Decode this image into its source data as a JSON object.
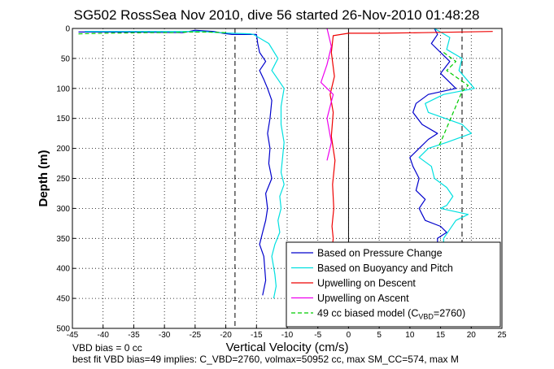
{
  "chart_data": {
    "type": "line",
    "title": "SG502 RossSea Nov 2010, dive 56 started 26-Nov-2010 01:48:28",
    "xlabel": "Vertical Velocity (cm/s)",
    "ylabel": "Depth (m)",
    "xlim": [
      -45,
      25
    ],
    "ylim": [
      500,
      0
    ],
    "x_ticks": [
      -45,
      -40,
      -35,
      -30,
      -25,
      -20,
      -15,
      -10,
      -5,
      0,
      5,
      10,
      15,
      20,
      25
    ],
    "y_ticks": [
      0,
      50,
      100,
      150,
      200,
      250,
      300,
      350,
      400,
      450,
      500
    ],
    "y_reversed": true,
    "grid": true,
    "legend_position": "bottom-right",
    "reference_lines": [
      {
        "x": -18.5,
        "style": "dashed",
        "color": "#000000"
      },
      {
        "x": 0,
        "style": "solid",
        "color": "#000000"
      },
      {
        "x": 18.5,
        "style": "dashed",
        "color": "#000000"
      }
    ],
    "series": [
      {
        "name": "Based on Pressure Change",
        "color": "#0000cc",
        "style": "solid",
        "groups": [
          {
            "x": [
              -44,
              -35,
              -27,
              -25,
              -22,
              -20.5,
              -19,
              -17,
              -16,
              -15,
              -14.8,
              -14.5,
              -13.5,
              -14.5,
              -13.8,
              -13.2,
              -12.5,
              -12.8,
              -13.2,
              -12.8,
              -13,
              -12.5,
              -13.5,
              -13.2,
              -13.5,
              -14,
              -14.5,
              -13.8,
              -13.5,
              -14
            ],
            "y": [
              6,
              6,
              7,
              3,
              5,
              8,
              10,
              10,
              10,
              10,
              25,
              40,
              55,
              70,
              85,
              100,
              120,
              150,
              175,
              200,
              225,
              250,
              275,
              300,
              320,
              340,
              360,
              380,
              420,
              445
            ]
          },
          {
            "x": [
              14,
              14.5,
              13.5,
              15.5,
              16.5,
              15,
              17.5,
              13,
              11,
              10.5,
              12,
              14.5,
              13,
              11.5,
              10,
              10.5,
              11.5,
              11,
              12.5,
              11.5,
              12,
              12.5,
              15,
              16,
              14.5,
              14.5,
              13,
              14
            ],
            "y": [
              0,
              10,
              25,
              45,
              55,
              75,
              100,
              110,
              125,
              140,
              160,
              175,
              185,
              200,
              215,
              230,
              250,
              270,
              285,
              300,
              310,
              320,
              330,
              340,
              350,
              360,
              370,
              380
            ]
          }
        ]
      },
      {
        "name": "Based on Buoyancy and Pitch",
        "color": "#00e0e0",
        "style": "solid",
        "groups": [
          {
            "x": [
              -43,
              -30,
              -24,
              -21,
              -19,
              -16,
              -15.5,
              -13,
              -11.5,
              -12.5,
              -11.5,
              -10.5,
              -11,
              -11,
              -10.5,
              -10.8,
              -11,
              -10.5,
              -11.2,
              -11,
              -11.5,
              -11.2,
              -12,
              -12.5,
              -12,
              -11.8,
              -12.2
            ],
            "y": [
              5,
              5,
              5,
              7,
              8,
              9,
              10,
              25,
              50,
              70,
              85,
              100,
              130,
              160,
              190,
              220,
              240,
              260,
              280,
              300,
              320,
              340,
              360,
              380,
              410,
              430,
              450
            ]
          },
          {
            "x": [
              14,
              16.5,
              16,
              18.5,
              18,
              20.5,
              15.5,
              12.5,
              13,
              18.5,
              20,
              16,
              13,
              11.5,
              13.5,
              14,
              16,
              17,
              16,
              15,
              19.5,
              17.5,
              16.5,
              15.5,
              15.5,
              14
            ],
            "y": [
              0,
              15,
              35,
              50,
              70,
              100,
              110,
              125,
              140,
              160,
              175,
              190,
              200,
              215,
              230,
              250,
              265,
              280,
              295,
              300,
              310,
              320,
              335,
              350,
              370,
              380
            ]
          }
        ]
      },
      {
        "name": "Upwelling on Descent",
        "color": "#ee0000",
        "style": "solid",
        "groups": [
          {
            "x": [
              23.5,
              12,
              5,
              0,
              -2.5,
              -2.8,
              -2.3,
              -3,
              -2.5,
              -2.8,
              -2.2,
              -2.6,
              -2.4,
              -2.7,
              -2.5,
              -2.6
            ],
            "y": [
              5,
              7,
              8,
              8,
              12,
              40,
              80,
              110,
              140,
              180,
              220,
              260,
              300,
              330,
              350,
              360
            ]
          }
        ]
      },
      {
        "name": "Upwelling on Ascent",
        "color": "#ee00ee",
        "style": "solid",
        "groups": [
          {
            "x": [
              -3.5,
              -2.8,
              -3.5,
              -4.5,
              -2.5,
              -3.5,
              -2.8,
              -3.5
            ],
            "y": [
              0,
              30,
              60,
              90,
              110,
              150,
              190,
              220
            ]
          }
        ]
      },
      {
        "name": "49 cc biased model (C_VBD=2760)",
        "color": "#00cc00",
        "style": "dashed",
        "groups": [
          {
            "x": [
              -44,
              -40,
              -33,
              -29,
              -26,
              -23,
              -20
            ],
            "y": [
              9,
              8,
              7,
              7,
              6,
              6,
              7
            ]
          },
          {
            "x": [
              15.5,
              17.5,
              16,
              19.5,
              18.5,
              15,
              14.5
            ],
            "y": [
              40,
              55,
              70,
              95,
              105,
              190,
              200
            ]
          }
        ]
      }
    ],
    "legend": [
      {
        "text": "Based on Pressure Change",
        "color": "#0000cc",
        "dashed": false
      },
      {
        "text": "Based on Buoyancy and Pitch",
        "color": "#00e0e0",
        "dashed": false
      },
      {
        "text": "Upwelling on Descent",
        "color": "#ee0000",
        "dashed": false
      },
      {
        "text": "Upwelling on Ascent",
        "color": "#ee00ee",
        "dashed": false
      },
      {
        "text": "49 cc biased model (C",
        "sub": "VBD",
        "suffix": "=2760)",
        "color": "#00cc00",
        "dashed": true
      }
    ],
    "notes": [
      "VBD bias = 0 cc",
      "best fit VBD bias=49 implies: C_VBD=2760, volmax=50952 cc, max SM_CC=574, max M"
    ]
  }
}
